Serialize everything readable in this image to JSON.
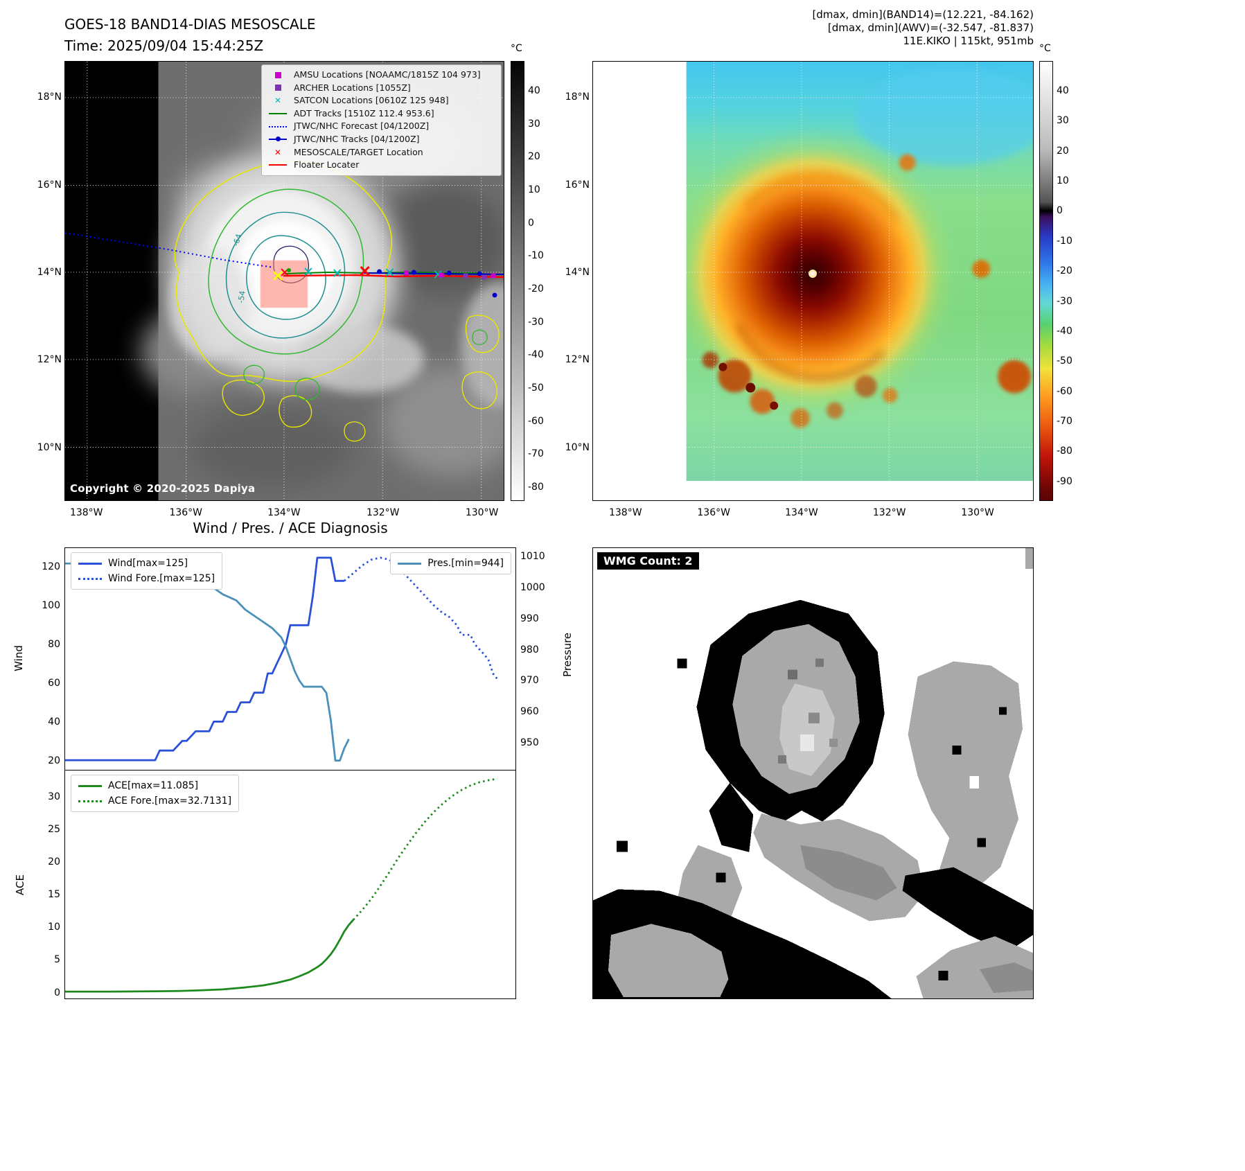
{
  "band14": {
    "title1": "GOES-18 BAND14-DIAS MESOSCALE",
    "title2": "Time: 2025/09/04 15:44:25Z",
    "copyright": "Copyright © 2020-2025 Dapiya",
    "contour_labels": [
      "-64",
      "-54"
    ],
    "lat_ticks": [
      "18°N",
      "16°N",
      "14°N",
      "12°N",
      "10°N"
    ],
    "lon_ticks": [
      "138°W",
      "136°W",
      "134°W",
      "132°W",
      "130°W"
    ],
    "legend": [
      {
        "label": "AMSU Locations [NOAAMC/1815Z 104 973]",
        "marker": "square",
        "color": "#cc00cc"
      },
      {
        "label": "ARCHER Locations [1055Z]",
        "marker": "square",
        "color": "#7d33b8"
      },
      {
        "label": "SATCON Locations [0610Z 125 948]",
        "marker": "x",
        "color": "#00b8b8"
      },
      {
        "label": "ADT Tracks [1510Z 112.4 953.6]",
        "marker": "line",
        "color": "#008000"
      },
      {
        "label": "JTWC/NHC Forecast [04/1200Z]",
        "marker": "dotted",
        "color": "#0000ff"
      },
      {
        "label": "JTWC/NHC Tracks [04/1200Z]",
        "marker": "line-dot",
        "color": "#0000cc"
      },
      {
        "label": "MESOSCALE/TARGET Location",
        "marker": "x",
        "color": "#ff0000"
      },
      {
        "label": "Floater Locater",
        "marker": "line",
        "color": "#ff0000"
      }
    ],
    "colorbar": {
      "unit": "°C",
      "ticks": [
        40,
        30,
        20,
        10,
        0,
        -10,
        -20,
        -30,
        -40,
        -50,
        -60,
        -70,
        -80
      ]
    }
  },
  "awv": {
    "header1": "[dmax, dmin](BAND14)=(12.221, -84.162)",
    "header2": "[dmax, dmin](AWV)=(-32.547, -81.837)",
    "header3": "11E.KIKO | 115kt, 951mb",
    "lat_ticks": [
      "18°N",
      "16°N",
      "14°N",
      "12°N",
      "10°N"
    ],
    "lon_ticks": [
      "138°W",
      "136°W",
      "134°W",
      "132°W",
      "130°W"
    ],
    "colorbar": {
      "unit": "°C",
      "ticks": [
        40,
        30,
        20,
        10,
        0,
        -10,
        -20,
        -30,
        -40,
        -50,
        -60,
        -70,
        -80,
        -90
      ]
    }
  },
  "diag": {
    "title": "Wind / Pres. / ACE Diagnosis",
    "wind_label": "Wind",
    "pressure_label": "Pressure",
    "ace_label": "ACE"
  },
  "wmg": {
    "label": "WMG Count: 2"
  },
  "chart_data": [
    {
      "id": "wind-pressure",
      "type": "line",
      "title": "Wind / Pres. / ACE Diagnosis",
      "ylabel_left": "Wind",
      "ylabel_right": "Pressure",
      "xlim": [
        0,
        100
      ],
      "ylim_left": [
        15,
        130
      ],
      "ylim_right": [
        941,
        1013
      ],
      "yticks_left": [
        20,
        40,
        60,
        80,
        100,
        120
      ],
      "yticks_right": [
        950,
        960,
        970,
        980,
        990,
        1000,
        1010
      ],
      "grid": false,
      "legend_left": [
        {
          "label": "Wind[max=125]",
          "style": "solid",
          "color": "#2a50d8"
        },
        {
          "label": "Wind Fore.[max=125]",
          "style": "dotted",
          "color": "#2a50d8"
        }
      ],
      "legend_right": [
        {
          "label": "Pres.[min=944]",
          "style": "solid",
          "color": "#4a90b8"
        }
      ],
      "series": [
        {
          "name": "Wind",
          "axis": "left",
          "style": "solid",
          "color": "#2a50d8",
          "x": [
            0,
            5,
            10,
            15,
            20,
            21,
            23,
            24,
            26,
            27,
            29,
            30,
            32,
            33,
            35,
            36,
            38,
            39,
            41,
            42,
            44,
            45,
            46,
            47,
            48,
            49,
            50,
            53,
            54,
            55,
            56,
            59,
            60,
            62
          ],
          "y": [
            20,
            20,
            20,
            20,
            20,
            25,
            25,
            25,
            30,
            30,
            35,
            35,
            35,
            40,
            40,
            45,
            45,
            50,
            50,
            55,
            55,
            65,
            65,
            70,
            75,
            80,
            90,
            90,
            90,
            105,
            125,
            125,
            113,
            113
          ]
        },
        {
          "name": "Wind Fore.",
          "axis": "left",
          "style": "dotted",
          "color": "#2a50d8",
          "x": [
            62,
            64,
            66,
            68,
            70,
            72,
            74,
            76,
            78,
            80,
            82,
            84,
            85,
            87,
            88,
            90,
            91,
            93,
            94,
            95,
            96
          ],
          "y": [
            113,
            117,
            121,
            124,
            125,
            124,
            120,
            115,
            110,
            105,
            100,
            96,
            95,
            90,
            85,
            85,
            80,
            75,
            72,
            65,
            62
          ]
        },
        {
          "name": "Pres.",
          "axis": "right",
          "style": "solid",
          "color": "#4a90b8",
          "x": [
            0,
            5,
            10,
            15,
            20,
            23,
            25,
            28,
            30,
            33,
            35,
            38,
            40,
            42,
            44,
            46,
            48,
            49,
            50,
            51,
            52,
            53,
            57,
            58,
            59,
            60,
            61,
            62,
            63
          ],
          "y": [
            1008,
            1008,
            1008,
            1008,
            1008,
            1007,
            1006,
            1004,
            1002,
            1000,
            998,
            996,
            993,
            991,
            989,
            987,
            984,
            981,
            977,
            973,
            970,
            968,
            968,
            966,
            957,
            944,
            944,
            948,
            951
          ]
        }
      ]
    },
    {
      "id": "ace",
      "type": "line",
      "title": "ACE",
      "ylabel_left": "ACE",
      "xlim": [
        0,
        100
      ],
      "ylim_left": [
        -1,
        34
      ],
      "yticks_left": [
        0,
        5,
        10,
        15,
        20,
        25,
        30
      ],
      "grid": false,
      "legend_left": [
        {
          "label": "ACE[max=11.085]",
          "style": "solid",
          "color": "#1e8a1e"
        },
        {
          "label": "ACE Fore.[max=32.7131]",
          "style": "dotted",
          "color": "#1e8a1e"
        }
      ],
      "series": [
        {
          "name": "ACE",
          "axis": "left",
          "style": "solid",
          "color": "#1e8a1e",
          "x": [
            0,
            10,
            20,
            25,
            30,
            35,
            40,
            44,
            47,
            50,
            52,
            54,
            56,
            57,
            58,
            59,
            60,
            61,
            62,
            63,
            64
          ],
          "y": [
            0.05,
            0.05,
            0.1,
            0.15,
            0.25,
            0.4,
            0.7,
            1.0,
            1.4,
            1.9,
            2.4,
            3.0,
            3.8,
            4.3,
            5.0,
            5.8,
            6.8,
            8.0,
            9.3,
            10.3,
            11.085
          ]
        },
        {
          "name": "ACE Fore.",
          "axis": "left",
          "style": "dotted",
          "color": "#1e8a1e",
          "x": [
            64,
            66,
            68,
            70,
            72,
            74,
            76,
            78,
            80,
            82,
            84,
            86,
            88,
            90,
            92,
            94,
            96
          ],
          "y": [
            11.085,
            12.6,
            14.3,
            16.3,
            18.4,
            20.6,
            22.6,
            24.5,
            26.2,
            27.7,
            29.0,
            30.1,
            31.0,
            31.7,
            32.2,
            32.5,
            32.7131
          ]
        }
      ]
    }
  ]
}
